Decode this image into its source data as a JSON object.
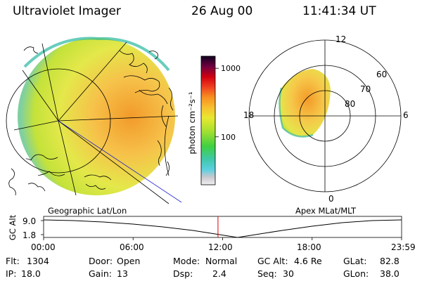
{
  "header": {
    "instrument": "Ultraviolet Imager",
    "date": "26 Aug 00",
    "time": "11:41:34 UT"
  },
  "colorbar": {
    "unit_label": "photon cm⁻²s⁻¹",
    "ticks": [
      {
        "label": "1000",
        "value": 1000
      },
      {
        "label": "100",
        "value": 100
      }
    ],
    "log_min": 20,
    "log_max": 1500
  },
  "left_panel": {
    "label": "Geographic Lat/Lon"
  },
  "right_panel": {
    "label": "Apex MLat/MLT",
    "mlt_labels": {
      "top": "12",
      "bottom": "0",
      "left": "18",
      "right": "6"
    },
    "lat_labels": [
      "60",
      "70",
      "80"
    ]
  },
  "altitude_plot": {
    "axis_label": "GC Alt",
    "y_ticks": [
      "9.0",
      "1.8"
    ],
    "x_ticks": [
      "00:00",
      "06:00",
      "12:00",
      "18:00",
      "23:59"
    ],
    "current_time_hours": 11.69,
    "marker_color": "#e00000"
  },
  "info": {
    "flt": {
      "label": "Flt:",
      "value": "1304"
    },
    "ip": {
      "label": "IP:",
      "value": "18.0"
    },
    "door": {
      "label": "Door:",
      "value": "Open"
    },
    "gain": {
      "label": "Gain:",
      "value": "13"
    },
    "mode": {
      "label": "Mode:",
      "value": "Normal"
    },
    "dsp": {
      "label": "Dsp:",
      "value": "2.4"
    },
    "gcalt": {
      "label": "GC Alt:",
      "value": "4.6 Re"
    },
    "seq": {
      "label": "Seq:",
      "value": "30"
    },
    "glat": {
      "label": "GLat:",
      "value": "82.8"
    },
    "glon": {
      "label": "GLon:",
      "value": "38.0"
    }
  }
}
